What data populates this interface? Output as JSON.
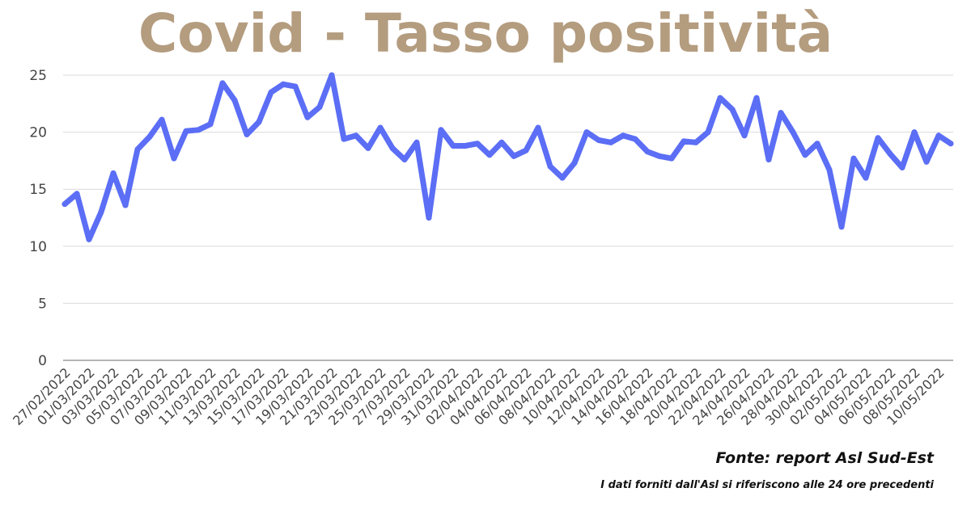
{
  "chart_data": {
    "type": "line",
    "title": "Covid - Tasso positività",
    "xlabel": "",
    "ylabel": "",
    "ylim": [
      0,
      25
    ],
    "yticks": [
      "0",
      "5",
      "10",
      "15",
      "20",
      "25"
    ],
    "grid": true,
    "legend": "none",
    "line_color": "#5b6ef5",
    "title_color": "#b49c7f",
    "x_tick_labels": [
      "27/02/2022",
      "01/03/2022",
      "03/03/2022",
      "05/03/2022",
      "07/03/2022",
      "09/03/2022",
      "11/03/2022",
      "13/03/2022",
      "15/03/2022",
      "17/03/2022",
      "19/03/2022",
      "21/03/2022",
      "23/03/2022",
      "25/03/2022",
      "27/03/2022",
      "29/03/2022",
      "31/03/2022",
      "02/04/2022",
      "04/04/2022",
      "06/04/2022",
      "08/04/2022",
      "10/04/2022",
      "12/04/2022",
      "14/04/2022",
      "16/04/2022",
      "18/04/2022",
      "20/04/2022",
      "22/04/2022",
      "24/04/2022",
      "26/04/2022",
      "28/04/2022",
      "30/04/2022",
      "02/05/2022",
      "04/05/2022",
      "06/05/2022",
      "08/05/2022",
      "10/05/2022"
    ],
    "series": [
      {
        "x": [
          "27/02/2022",
          "28/02/2022",
          "01/03/2022",
          "02/03/2022",
          "03/03/2022",
          "04/03/2022",
          "05/03/2022",
          "06/03/2022",
          "07/03/2022",
          "08/03/2022",
          "09/03/2022",
          "10/03/2022",
          "11/03/2022",
          "12/03/2022",
          "13/03/2022",
          "14/03/2022",
          "15/03/2022",
          "16/03/2022",
          "17/03/2022",
          "18/03/2022",
          "19/03/2022",
          "20/03/2022",
          "21/03/2022",
          "22/03/2022",
          "23/03/2022",
          "24/03/2022",
          "25/03/2022",
          "26/03/2022",
          "27/03/2022",
          "28/03/2022",
          "29/03/2022",
          "30/03/2022",
          "31/03/2022",
          "01/04/2022",
          "02/04/2022",
          "03/04/2022",
          "04/04/2022",
          "05/04/2022",
          "06/04/2022",
          "07/04/2022",
          "08/04/2022",
          "09/04/2022",
          "10/04/2022",
          "11/04/2022",
          "12/04/2022",
          "13/04/2022",
          "14/04/2022",
          "15/04/2022",
          "16/04/2022",
          "17/04/2022",
          "18/04/2022",
          "19/04/2022",
          "20/04/2022",
          "21/04/2022",
          "22/04/2022",
          "23/04/2022",
          "24/04/2022",
          "25/04/2022",
          "26/04/2022",
          "27/04/2022",
          "28/04/2022",
          "29/04/2022",
          "30/04/2022",
          "01/05/2022",
          "02/05/2022",
          "03/05/2022",
          "04/05/2022",
          "05/05/2022",
          "06/05/2022",
          "07/05/2022",
          "08/05/2022",
          "09/05/2022",
          "10/05/2022",
          "11/05/2022"
        ],
        "values": [
          13.7,
          14.6,
          10.6,
          13.0,
          16.4,
          13.6,
          18.5,
          19.6,
          21.1,
          17.7,
          20.1,
          20.2,
          20.7,
          24.3,
          22.8,
          19.8,
          20.9,
          23.5,
          24.2,
          24.0,
          21.3,
          22.2,
          25.0,
          19.4,
          19.7,
          18.6,
          20.4,
          18.6,
          17.6,
          19.1,
          12.5,
          20.2,
          18.8,
          18.8,
          19.0,
          18.0,
          19.1,
          17.9,
          18.4,
          20.4,
          17.0,
          16.0,
          17.3,
          20.0,
          19.3,
          19.1,
          19.7,
          19.4,
          18.3,
          17.9,
          17.7,
          19.2,
          19.1,
          20.0,
          23.0,
          22.0,
          19.7,
          23.0,
          17.6,
          21.7,
          20.0,
          18.0,
          19.0,
          16.7,
          11.7,
          17.7,
          16.0,
          19.5,
          18.1,
          16.9,
          20.0,
          17.4,
          19.7,
          19.0
        ]
      }
    ]
  },
  "footer": {
    "source": "Fonte: report Asl Sud-Est",
    "disclaimer": "I dati forniti dall'Asl si riferiscono alle 24 ore precedenti"
  }
}
